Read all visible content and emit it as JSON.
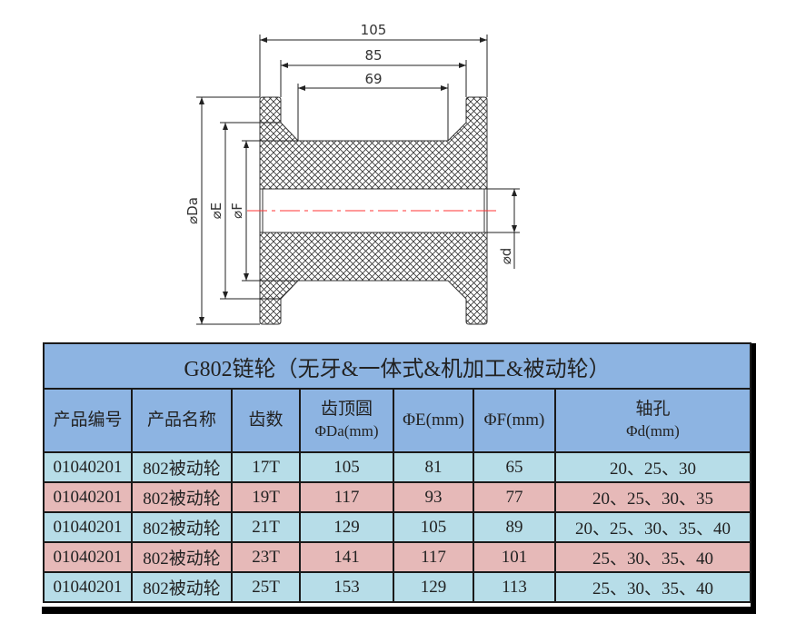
{
  "drawing": {
    "dimensions": {
      "overall_width": "105",
      "flange_inner_width": "85",
      "hub_width": "69",
      "da": "⌀Da",
      "e": "⌀E",
      "f": "⌀F",
      "d": "⌀d"
    },
    "colors": {
      "centerline": "#ff3333",
      "hatch": "#333333"
    }
  },
  "table": {
    "title": "G802链轮（无牙&一体式&机加工&被动轮）",
    "headers": [
      {
        "l1": "产品编号",
        "l2": ""
      },
      {
        "l1": "产品名称",
        "l2": ""
      },
      {
        "l1": "齿数",
        "l2": ""
      },
      {
        "l1": "齿顶圆",
        "l2": "ΦDa(mm)"
      },
      {
        "l1": "ΦE(mm)",
        "l2": ""
      },
      {
        "l1": "ΦF(mm)",
        "l2": ""
      },
      {
        "l1": "轴孔",
        "l2": "Φd(mm)"
      }
    ],
    "rows": [
      [
        "01040201",
        "802被动轮",
        "17T",
        "105",
        "81",
        "65",
        "20、25、30"
      ],
      [
        "01040201",
        "802被动轮",
        "19T",
        "117",
        "93",
        "77",
        "20、25、30、35"
      ],
      [
        "01040201",
        "802被动轮",
        "21T",
        "129",
        "105",
        "89",
        "20、25、30、35、40"
      ],
      [
        "01040201",
        "802被动轮",
        "23T",
        "141",
        "117",
        "101",
        "25、30、35、40"
      ],
      [
        "01040201",
        "802被动轮",
        "25T",
        "153",
        "129",
        "113",
        "25、30、35、40"
      ]
    ],
    "colors": {
      "header": "#8db4e2",
      "row_blue": "#b7dde8",
      "row_pink": "#e6b9b8"
    }
  }
}
